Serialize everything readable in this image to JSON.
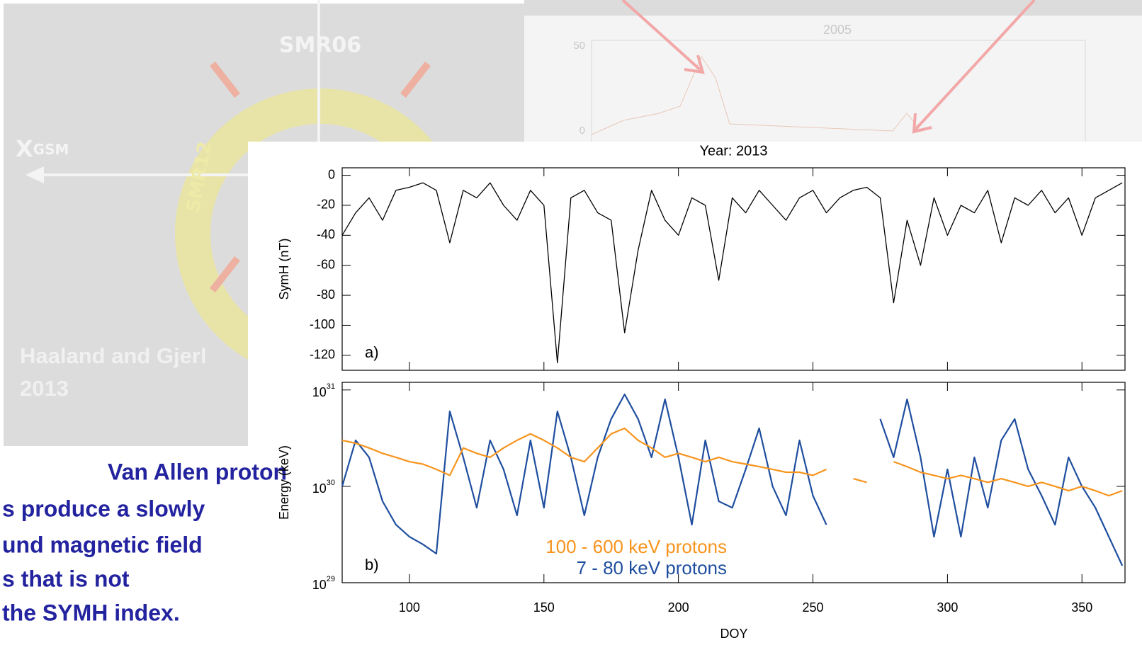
{
  "slide": {
    "diagram": {
      "labels": [
        "SMR06",
        "SMR12"
      ],
      "axis_label": "X",
      "axis_subscript": "GSM",
      "citation": [
        "Haaland and Gjerl",
        "2013"
      ]
    },
    "background_chart": {
      "title": "2005",
      "yticks": [
        "50",
        "0"
      ]
    },
    "text_lines": [
      "Van Allen proton",
      "s produce a slowly",
      "und magnetic field",
      "s that is not",
      "the SYMH index."
    ]
  },
  "chart_data": [
    {
      "type": "line",
      "title": "Year: 2013",
      "ylabel": "SymH (nT)",
      "panel_label": "a)",
      "xlim": [
        75,
        366
      ],
      "xticks": [
        100,
        150,
        200,
        250,
        300,
        350
      ],
      "xtick_labels": false,
      "ylim": [
        -130,
        5
      ],
      "yticks": [
        0,
        -20,
        -40,
        -60,
        -80,
        -100,
        -120
      ],
      "log_scale": false,
      "x": [
        75,
        80,
        85,
        90,
        95,
        100,
        105,
        110,
        115,
        120,
        125,
        130,
        135,
        140,
        145,
        150,
        155,
        160,
        165,
        170,
        175,
        180,
        185,
        190,
        195,
        200,
        205,
        210,
        215,
        220,
        225,
        230,
        235,
        240,
        245,
        250,
        255,
        260,
        265,
        270,
        275,
        280,
        285,
        290,
        295,
        300,
        305,
        310,
        315,
        320,
        325,
        330,
        335,
        340,
        345,
        350,
        355,
        360,
        365
      ],
      "series": [
        {
          "color": "#000000",
          "values": [
            -40,
            -25,
            -15,
            -30,
            -10,
            -8,
            -5,
            -10,
            -45,
            -10,
            -15,
            -5,
            -20,
            -30,
            -10,
            -20,
            -125,
            -15,
            -10,
            -25,
            -30,
            -105,
            -50,
            -10,
            -30,
            -40,
            -15,
            -20,
            -70,
            -15,
            -25,
            -10,
            -20,
            -30,
            -15,
            -10,
            -25,
            -15,
            -10,
            -8,
            -15,
            -85,
            -30,
            -60,
            -15,
            -40,
            -20,
            -25,
            -10,
            -45,
            -15,
            -20,
            -10,
            -25,
            -15,
            -40,
            -15,
            -10,
            -5
          ]
        }
      ]
    },
    {
      "type": "line",
      "ylabel": "Energy (keV)",
      "xlabel": "DOY",
      "panel_label": "b)",
      "xlim": [
        75,
        366
      ],
      "xticks": [
        100,
        150,
        200,
        250,
        300,
        350
      ],
      "xtick_labels": true,
      "ylim": [
        1e+29,
        1.2e+31
      ],
      "log_scale": true,
      "yticks": [
        {
          "value": 1e+29,
          "label": "10",
          "exponent": "29"
        },
        {
          "value": 1e+30,
          "label": "10",
          "exponent": "30"
        },
        {
          "value": 1e+31,
          "label": "10",
          "exponent": "31"
        }
      ],
      "x": [
        75,
        80,
        85,
        90,
        95,
        100,
        105,
        110,
        115,
        120,
        125,
        130,
        135,
        140,
        145,
        150,
        155,
        160,
        165,
        170,
        175,
        180,
        185,
        190,
        195,
        200,
        205,
        210,
        215,
        220,
        225,
        230,
        235,
        240,
        245,
        250,
        255,
        260,
        265,
        270,
        275,
        280,
        285,
        290,
        295,
        300,
        305,
        310,
        315,
        320,
        325,
        330,
        335,
        340,
        345,
        350,
        355,
        360,
        365
      ],
      "series": [
        {
          "name": "100 - 600 keV protons",
          "color": "#f7941d",
          "values": [
            3e+30,
            2.8e+30,
            2.5e+30,
            2.2e+30,
            2e+30,
            1.8e+30,
            1.7e+30,
            1.5e+30,
            1.3e+30,
            2.5e+30,
            2.2e+30,
            2e+30,
            2.5e+30,
            3e+30,
            3.5e+30,
            3e+30,
            2.5e+30,
            2e+30,
            1.8e+30,
            2.5e+30,
            3.5e+30,
            4e+30,
            3e+30,
            2.5e+30,
            2e+30,
            2.2e+30,
            2e+30,
            1.8e+30,
            2e+30,
            1.8e+30,
            1.7e+30,
            1.6e+30,
            1.5e+30,
            1.4e+30,
            1.4e+30,
            1.3e+30,
            1.5e+30,
            null,
            1.2e+30,
            1.1e+30,
            null,
            1.8e+30,
            1.6e+30,
            1.4e+30,
            1.3e+30,
            1.2e+30,
            1.3e+30,
            1.2e+30,
            1.1e+30,
            1.2e+30,
            1.1e+30,
            1e+30,
            1.1e+30,
            1e+30,
            9e+29,
            1e+30,
            9e+29,
            8e+29,
            9e+29
          ]
        },
        {
          "name": "7 - 80 keV protons",
          "color": "#1f4e9f",
          "values": [
            1e+30,
            3e+30,
            2e+30,
            7e+29,
            4e+29,
            3e+29,
            2.5e+29,
            2e+29,
            6e+30,
            2e+30,
            6e+29,
            3e+30,
            1.5e+30,
            5e+29,
            3e+30,
            6e+29,
            6e+30,
            2e+30,
            5e+29,
            2e+30,
            5e+30,
            9e+30,
            5e+30,
            2e+30,
            8e+30,
            2e+30,
            4e+29,
            3e+30,
            7e+29,
            6e+29,
            1.5e+30,
            4e+30,
            1e+30,
            5e+29,
            3e+30,
            8e+29,
            4e+29,
            null,
            null,
            null,
            5e+30,
            2e+30,
            8e+30,
            2e+30,
            3e+29,
            1.5e+30,
            3e+29,
            2e+30,
            6e+29,
            3e+30,
            5e+30,
            1.5e+30,
            8e+29,
            4e+29,
            2e+30,
            1e+30,
            6e+29,
            3e+29,
            1.5e+29
          ]
        }
      ]
    }
  ]
}
